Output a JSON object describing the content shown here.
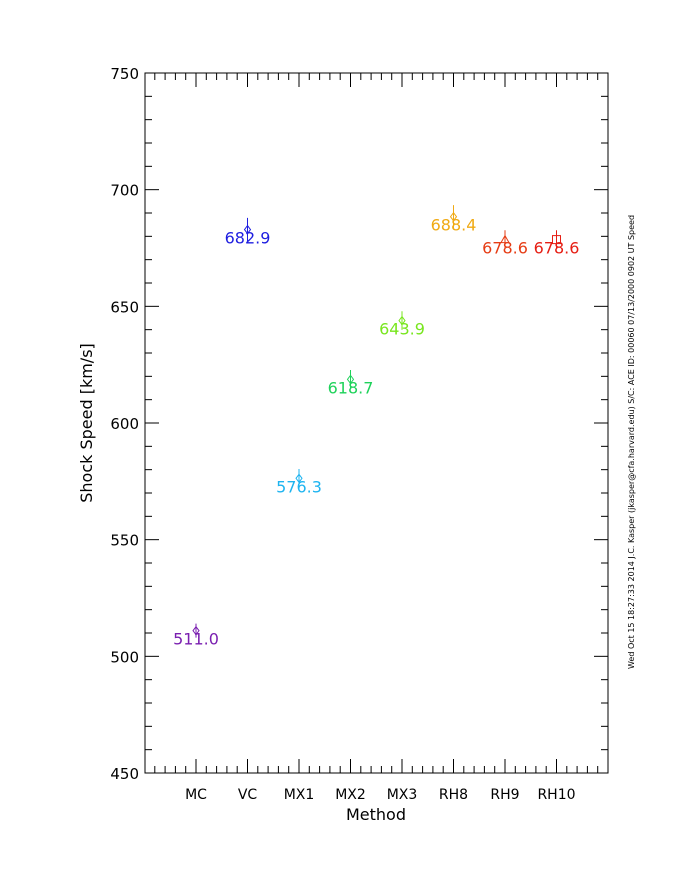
{
  "chart_data": {
    "type": "scatter",
    "xlabel": "Method",
    "ylabel": "Shock Speed [km/s]",
    "ylim": [
      450,
      750
    ],
    "y_ticks": [
      "450",
      "500",
      "550",
      "600",
      "650",
      "700",
      "750"
    ],
    "y_tick_values": [
      450,
      500,
      550,
      600,
      650,
      700,
      750
    ],
    "grid": false,
    "categories": [
      "MC",
      "VC",
      "MX1",
      "MX2",
      "MX3",
      "RH8",
      "RH9",
      "RH10"
    ],
    "points": [
      {
        "category": "MC",
        "value": 511.0,
        "label": "511.0",
        "error": 3,
        "marker": "diamond",
        "color": "#7a1fb0"
      },
      {
        "category": "VC",
        "value": 682.9,
        "label": "682.9",
        "error": 5,
        "marker": "diamond",
        "color": "#1e1ee0"
      },
      {
        "category": "MX1",
        "value": 576.3,
        "label": "576.3",
        "error": 4,
        "marker": "diamond",
        "color": "#1eb4f0"
      },
      {
        "category": "MX2",
        "value": 618.7,
        "label": "618.7",
        "error": 4,
        "marker": "diamond",
        "color": "#1ed25a"
      },
      {
        "category": "MX3",
        "value": 643.9,
        "label": "643.9",
        "error": 4,
        "marker": "diamond",
        "color": "#78e61e"
      },
      {
        "category": "RH8",
        "value": 688.4,
        "label": "688.4",
        "error": 5,
        "marker": "diamond",
        "color": "#f0aa14"
      },
      {
        "category": "RH9",
        "value": 678.6,
        "label": "678.6",
        "error": 4,
        "marker": "triangle",
        "color": "#e63c14"
      },
      {
        "category": "RH10",
        "value": 678.6,
        "label": "678.6",
        "error": 4,
        "marker": "square",
        "color": "#e61e14"
      }
    ],
    "side_note": "Wed Oct 15 18:27:33 2014  J.C. Kasper (jkasper@cfa.harvard.edu)  S/C: ACE ID: 00060 07/13/2000  0902 UT Speed"
  }
}
